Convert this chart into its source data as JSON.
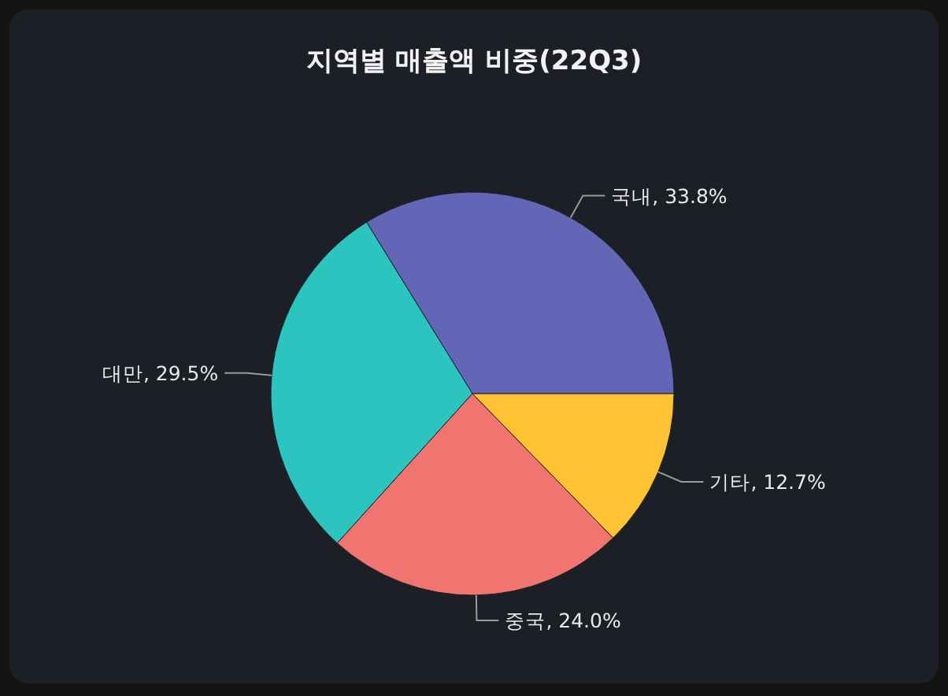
{
  "chart_data": {
    "type": "pie",
    "title": "지역별 매출액 비중(22Q3)",
    "categories": [
      "국내",
      "대만",
      "중국",
      "기타"
    ],
    "values": [
      33.8,
      29.5,
      24.0,
      12.7
    ],
    "colors": [
      "#6366b6",
      "#2bc4be",
      "#f07571",
      "#ffc233"
    ],
    "value_labels": [
      ", 33.8%",
      ", 29.5%",
      ", 24.0%",
      ", 12.7%"
    ]
  }
}
